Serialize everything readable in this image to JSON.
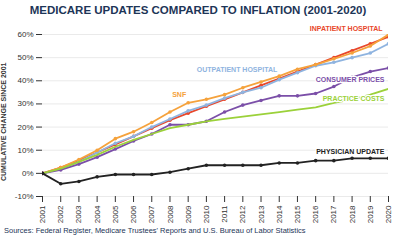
{
  "chart_data": {
    "type": "line",
    "title": "MEDICARE UPDATES COMPARED TO INFLATION (2001-2020)",
    "ylabel": "CUMULATIVE CHANGE SINCE 2001",
    "source": "Sources: Federal Register, Medicare Trustees' Reports and U.S. Bureau of Labor Statistics",
    "x": [
      2001,
      2002,
      2003,
      2004,
      2005,
      2006,
      2007,
      2008,
      2009,
      2010,
      2011,
      2012,
      2013,
      2014,
      2015,
      2016,
      2017,
      2018,
      2019,
      2020
    ],
    "xlim": [
      2001,
      2020
    ],
    "xticks": [
      2001,
      2002,
      2003,
      2004,
      2005,
      2006,
      2007,
      2008,
      2009,
      2010,
      2011,
      2012,
      2013,
      2014,
      2015,
      2016,
      2017,
      2018,
      2019,
      2020
    ],
    "ylim": [
      -10,
      60
    ],
    "yticks": [
      {
        "value": -10,
        "label": "-10%"
      },
      {
        "value": 0,
        "label": "0%"
      },
      {
        "value": 10,
        "label": "10%"
      },
      {
        "value": 20,
        "label": "20%"
      },
      {
        "value": 30,
        "label": "30%"
      },
      {
        "value": 40,
        "label": "40%"
      },
      {
        "value": 50,
        "label": "50%"
      },
      {
        "value": 60,
        "label": "60%"
      }
    ],
    "grid": true,
    "series": [
      {
        "name": "INPATIENT HOSPITAL",
        "color": "#e8472b",
        "marker": "circle",
        "values": [
          0,
          2.5,
          5.5,
          9,
          12.5,
          16,
          19.5,
          23,
          26,
          29,
          32,
          35,
          38,
          41,
          44,
          47,
          50,
          53,
          56,
          59
        ]
      },
      {
        "name": "OUTPATIENT HOSPITAL",
        "color": "#8fb4e0",
        "marker": "circle",
        "values": [
          0,
          2,
          5,
          9,
          13,
          16,
          20,
          23.5,
          27,
          29.5,
          32.5,
          35,
          37,
          40.5,
          43.5,
          46.5,
          48,
          50,
          52,
          56
        ]
      },
      {
        "name": "SNF",
        "color": "#f5a23c",
        "marker": "circle",
        "values": [
          0,
          2.5,
          6,
          10,
          15,
          18,
          22,
          26.5,
          30.5,
          32,
          34,
          37,
          39.5,
          42,
          45,
          47,
          49.5,
          52,
          55,
          60
        ]
      },
      {
        "name": "CONSUMER PRICES",
        "color": "#7b4fa8",
        "marker": "circle",
        "values": [
          0,
          1.5,
          4,
          7,
          10.5,
          14,
          17,
          21,
          21,
          22.5,
          26.5,
          29.5,
          31.5,
          33.5,
          33.5,
          34.5,
          37.5,
          41.5,
          44,
          45.5
        ]
      },
      {
        "name": "PRACTICE COSTS",
        "color": "#9bd13a",
        "marker": "none",
        "values": [
          0,
          2,
          5,
          8,
          11.5,
          14.5,
          17,
          19.5,
          21,
          22.5,
          23.5,
          24.5,
          25.5,
          26.5,
          27.5,
          28.5,
          30.5,
          32,
          34,
          36.5
        ]
      },
      {
        "name": "PHYSICIAN UPDATE",
        "color": "#222222",
        "marker": "circle",
        "values": [
          0,
          -4.5,
          -3.5,
          -1.5,
          -0.5,
          -0.5,
          -0.5,
          0.5,
          2,
          3.5,
          3.5,
          3.5,
          3.5,
          4.5,
          4.5,
          5.5,
          5.5,
          6.5,
          6.5,
          6.5
        ]
      }
    ]
  }
}
